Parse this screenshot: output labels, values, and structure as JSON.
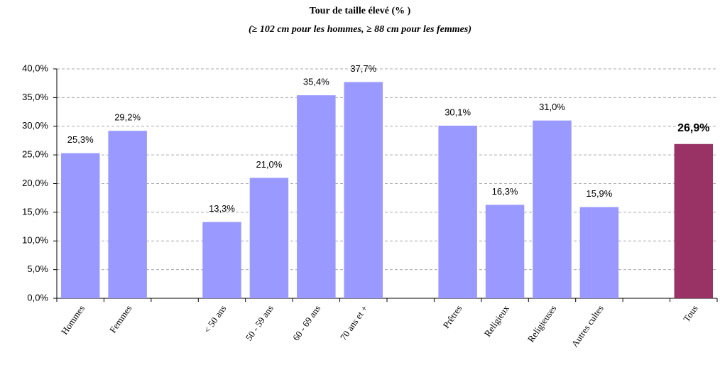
{
  "chart_data": {
    "type": "bar",
    "title": "Tour de taille élevé (% )",
    "subtitle": "(≥ 102 cm pour les hommes, ≥ 88 cm pour les femmes)",
    "categories": [
      "Hommes",
      "Femmes",
      null,
      "< 50 ans",
      "50 - 59 ans",
      "60 - 69 ans",
      "70 ans et +",
      null,
      "Prêtres",
      "Religieux",
      "Religieuses",
      "Autres cultes",
      null,
      "Tous"
    ],
    "values": [
      25.3,
      29.2,
      null,
      13.3,
      21.0,
      35.4,
      37.7,
      null,
      30.1,
      16.3,
      31.0,
      15.9,
      null,
      26.9
    ],
    "value_labels": [
      "25,3%",
      "29,2%",
      null,
      "13,3%",
      "21,0%",
      "35,4%",
      "37,7%",
      null,
      "30,1%",
      "16,3%",
      "31,0%",
      "15,9%",
      null,
      "26,9%"
    ],
    "colors": [
      "#9999ff",
      "#9999ff",
      null,
      "#9999ff",
      "#9999ff",
      "#9999ff",
      "#9999ff",
      null,
      "#9999ff",
      "#9999ff",
      "#9999ff",
      "#9999ff",
      null,
      "#993366"
    ],
    "ylim": [
      0,
      40
    ],
    "yticks": [
      {
        "value": 0,
        "label": "0,0%"
      },
      {
        "value": 5,
        "label": "5,0%"
      },
      {
        "value": 10,
        "label": "10,0%"
      },
      {
        "value": 15,
        "label": "15,0%"
      },
      {
        "value": 20,
        "label": "20,0%"
      },
      {
        "value": 25,
        "label": "25,0%"
      },
      {
        "value": 30,
        "label": "30,0%"
      },
      {
        "value": 35,
        "label": "35,0%"
      },
      {
        "value": 40,
        "label": "40,0%"
      }
    ],
    "grid": true
  }
}
